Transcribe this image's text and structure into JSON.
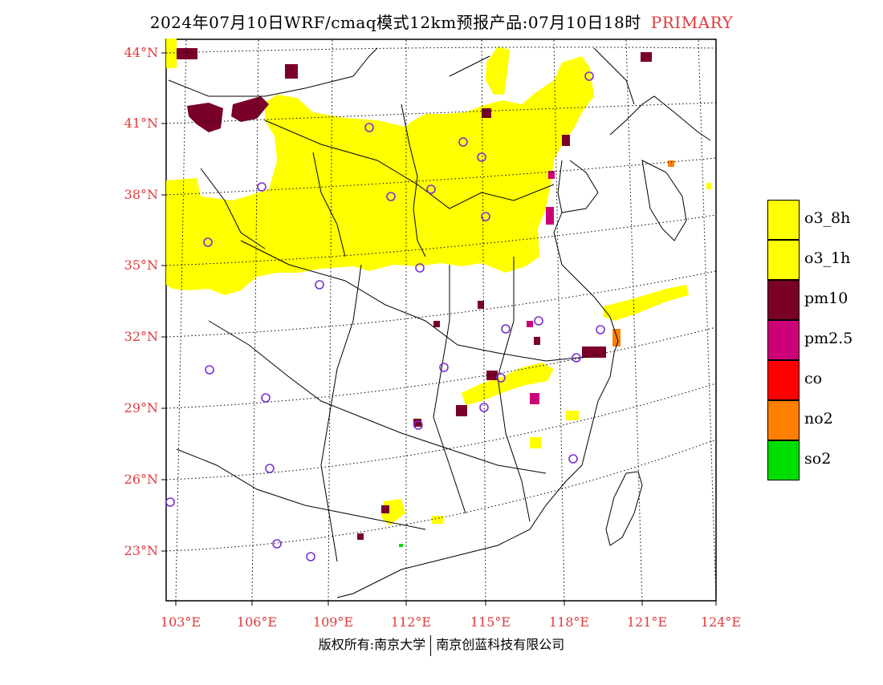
{
  "title": {
    "main": "2024年07月10日WRF/cmaq模式12km预报产品:07月10日18时",
    "tag": "PRIMARY"
  },
  "map": {
    "lat_labels": [
      "44°N",
      "41°N",
      "38°N",
      "35°N",
      "32°N",
      "29°N",
      "26°N",
      "23°N"
    ],
    "lon_labels": [
      "103°E",
      "106°E",
      "109°E",
      "112°E",
      "115°E",
      "118°E",
      "121°E",
      "124°E"
    ]
  },
  "legend": [
    {
      "label": "o3_8h",
      "color": "#ffff00"
    },
    {
      "label": "o3_1h",
      "color": "#ffff00"
    },
    {
      "label": "pm10",
      "color": "#7a0028"
    },
    {
      "label": "pm2.5",
      "color": "#cc0077"
    },
    {
      "label": "co",
      "color": "#ff0000"
    },
    {
      "label": "no2",
      "color": "#ff7f00"
    },
    {
      "label": "so2",
      "color": "#00dd00"
    }
  ],
  "footer": {
    "left": "版权所有:南京大学",
    "right": "南京创蓝科技有限公司"
  },
  "colors": {
    "label_red": "#e0393b",
    "station_circle": "#7b2fd0",
    "o3": "#ffff00",
    "pm10": "#7a0028",
    "pm25": "#cc0077",
    "no2": "#ff7f00",
    "so2": "#00dd00"
  }
}
